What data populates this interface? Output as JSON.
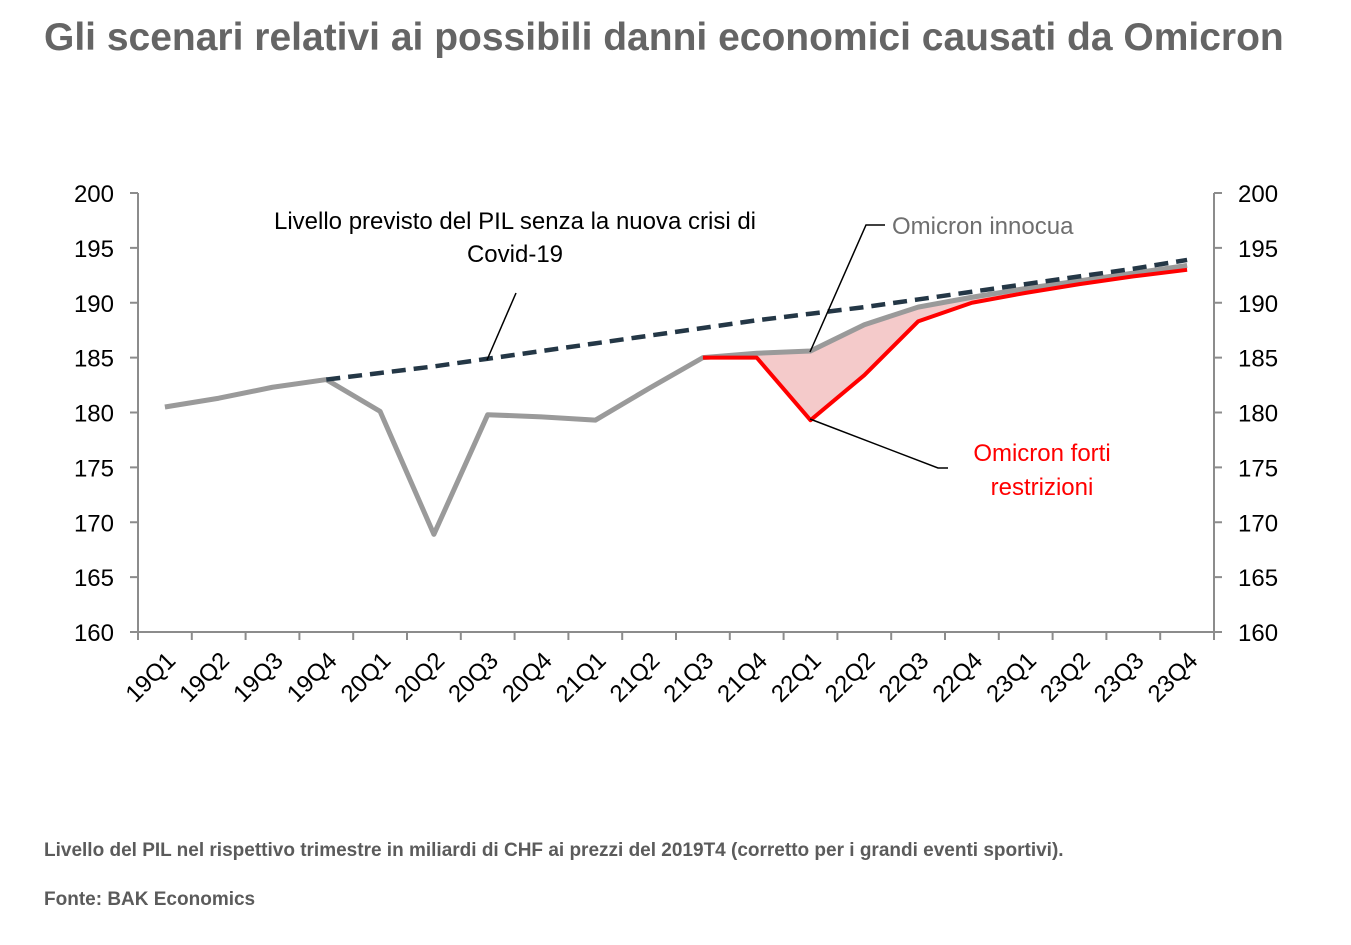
{
  "title": "Gli scenari relativi ai possibili danni economici causati da Omicron",
  "caption": "Livello del PIL nel rispettivo trimestre in miliardi di CHF ai prezzi del 2019T4 (corretto per i grandi eventi sportivi).",
  "source": "Fonte: BAK Economics",
  "chart_data": {
    "type": "line",
    "categories": [
      "19Q1",
      "19Q2",
      "19Q3",
      "19Q4",
      "20Q1",
      "20Q2",
      "20Q3",
      "20Q4",
      "21Q1",
      "21Q2",
      "21Q3",
      "21Q4",
      "22Q1",
      "22Q2",
      "22Q3",
      "22Q4",
      "23Q1",
      "23Q2",
      "23Q3",
      "23Q4"
    ],
    "ylim": [
      160,
      200
    ],
    "yticks": [
      160,
      165,
      170,
      175,
      180,
      185,
      190,
      195,
      200
    ],
    "right_axis": true,
    "grid": false,
    "series": [
      {
        "key": "forecast",
        "label_lines": [
          "Livello previsto del PIL senza la nuova crisi di",
          "Covid-19"
        ],
        "color": "#243746",
        "style": "dashed",
        "values": [
          null,
          null,
          null,
          183.0,
          183.6,
          184.2,
          184.9,
          185.6,
          186.3,
          187.0,
          187.7,
          188.4,
          189.0,
          189.6,
          190.3,
          191.0,
          191.7,
          192.4,
          193.1,
          193.9
        ]
      },
      {
        "key": "innocua",
        "label_lines": [
          "Omicron innocua"
        ],
        "color": "#9a9a9a",
        "style": "solid",
        "values": [
          180.5,
          181.3,
          182.3,
          183.0,
          180.1,
          168.9,
          179.8,
          179.6,
          179.3,
          182.2,
          185.0,
          185.4,
          185.6,
          188.0,
          189.6,
          190.5,
          191.3,
          192.0,
          192.7,
          193.4
        ]
      },
      {
        "key": "forti",
        "label_lines": [
          "Omicron forti",
          "restrizioni"
        ],
        "color": "#ff0000",
        "style": "solid",
        "values": [
          null,
          null,
          null,
          null,
          null,
          null,
          null,
          null,
          null,
          null,
          185.0,
          185.0,
          179.3,
          183.4,
          188.3,
          190.0,
          190.9,
          191.7,
          192.4,
          193.0
        ]
      }
    ],
    "shaded_gap": {
      "between": [
        "forti",
        "innocua"
      ],
      "color": "#f4caca"
    }
  }
}
